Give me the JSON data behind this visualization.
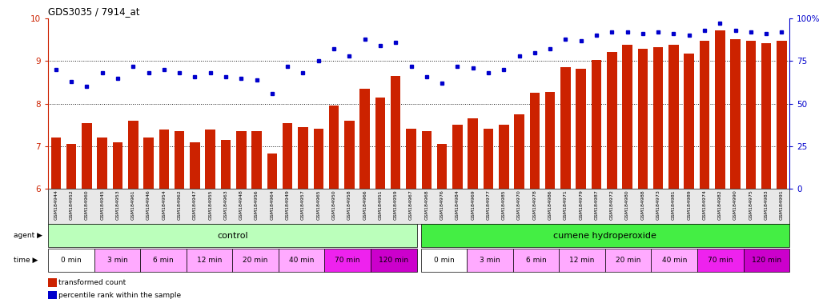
{
  "title": "GDS3035 / 7914_at",
  "gsm_labels": [
    "GSM184944",
    "GSM184952",
    "GSM184960",
    "GSM184945",
    "GSM184953",
    "GSM184961",
    "GSM184946",
    "GSM184954",
    "GSM184962",
    "GSM184947",
    "GSM184955",
    "GSM184963",
    "GSM184948",
    "GSM184956",
    "GSM184964",
    "GSM184949",
    "GSM184957",
    "GSM184965",
    "GSM184950",
    "GSM184958",
    "GSM184966",
    "GSM184951",
    "GSM184959",
    "GSM184967",
    "GSM184968",
    "GSM184976",
    "GSM184984",
    "GSM184969",
    "GSM184977",
    "GSM184985",
    "GSM184970",
    "GSM184978",
    "GSM184986",
    "GSM184971",
    "GSM184979",
    "GSM184987",
    "GSM184972",
    "GSM184980",
    "GSM184988",
    "GSM184973",
    "GSM184981",
    "GSM184989",
    "GSM184974",
    "GSM184982",
    "GSM184990",
    "GSM184975",
    "GSM184983",
    "GSM184991"
  ],
  "bar_values": [
    7.2,
    7.05,
    7.55,
    7.2,
    7.1,
    7.6,
    7.2,
    7.4,
    7.35,
    7.1,
    7.4,
    7.15,
    7.35,
    7.35,
    6.82,
    7.55,
    7.45,
    7.42,
    7.95,
    7.6,
    8.35,
    8.15,
    8.65,
    7.42,
    7.35,
    7.05,
    7.5,
    7.65,
    7.42,
    7.5,
    7.75,
    8.25,
    8.28,
    8.85,
    8.82,
    9.02,
    9.22,
    9.38,
    9.28,
    9.32,
    9.38,
    9.18,
    9.48,
    9.72,
    9.52,
    9.48,
    9.42,
    9.48
  ],
  "percentile_values": [
    70,
    63,
    60,
    68,
    65,
    72,
    68,
    70,
    68,
    66,
    68,
    66,
    65,
    64,
    56,
    72,
    68,
    75,
    82,
    78,
    88,
    84,
    86,
    72,
    66,
    62,
    72,
    71,
    68,
    70,
    78,
    80,
    82,
    88,
    87,
    90,
    92,
    92,
    91,
    92,
    91,
    90,
    93,
    97,
    93,
    92,
    91,
    92
  ],
  "bar_color": "#cc2200",
  "dot_color": "#0000cc",
  "ylim_left": [
    6,
    10
  ],
  "ylim_right": [
    0,
    100
  ],
  "yticks_left": [
    6,
    7,
    8,
    9,
    10
  ],
  "ytick_right_vals": [
    0,
    25,
    50,
    75,
    100
  ],
  "ytick_labels_right": [
    "0",
    "25",
    "50",
    "75",
    "100%"
  ],
  "agent_control_label": "control",
  "agent_treatment_label": "cumene hydroperoxide",
  "agent_control_color": "#bbffbb",
  "agent_treatment_color": "#44ee44",
  "time_labels": [
    "0 min",
    "3 min",
    "6 min",
    "12 min",
    "20 min",
    "40 min",
    "70 min",
    "120 min"
  ],
  "time_colors": [
    "#ffffff",
    "#ffaaff",
    "#ffaaff",
    "#ffaaff",
    "#ffaaff",
    "#ffaaff",
    "#ee22ee",
    "#cc00cc"
  ],
  "gsm_band_color": "#dddddd",
  "legend_red_label": "transformed count",
  "legend_blue_label": "percentile rank within the sample"
}
